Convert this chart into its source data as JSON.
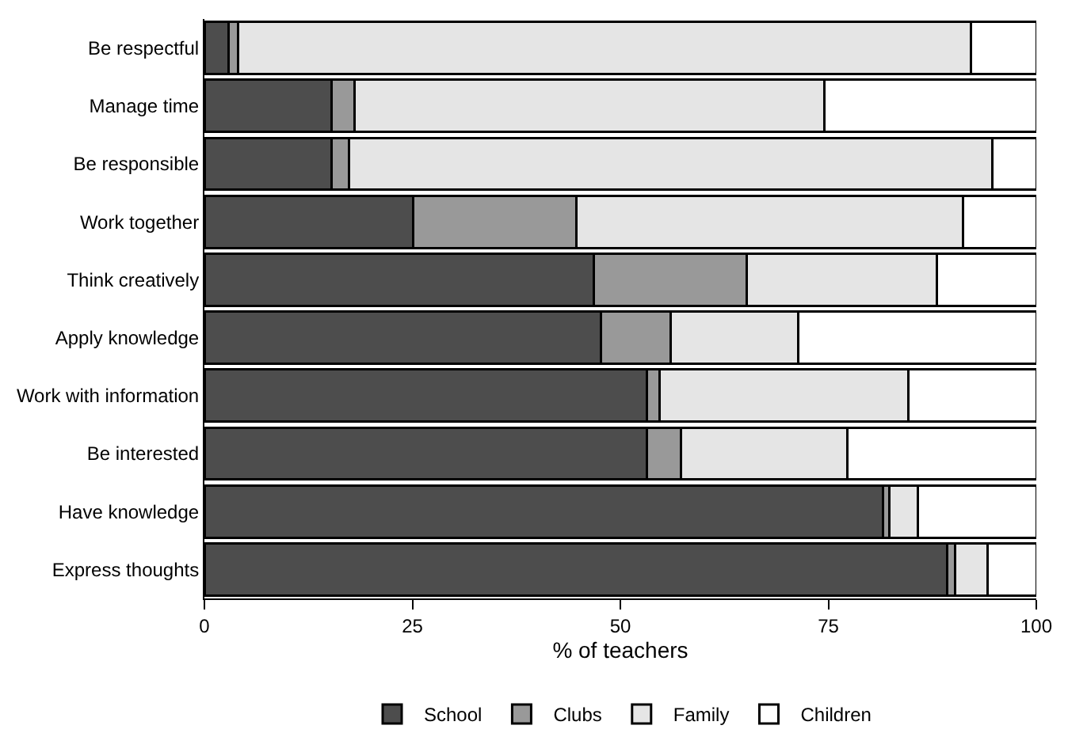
{
  "chart_data": {
    "type": "bar",
    "orientation": "horizontal",
    "stacked": true,
    "categories": [
      "Be respectful",
      "Manage time",
      "Be responsible",
      "Work together",
      "Think creatively",
      "Apply knowledge",
      "Work with information",
      "Be interested",
      "Have knowledge",
      "Express thoughts"
    ],
    "series": [
      {
        "name": "School",
        "color": "#4d4d4d",
        "values": [
          2.9,
          15.3,
          15.3,
          25.1,
          46.8,
          47.7,
          53.2,
          53.2,
          81.6,
          89.3
        ]
      },
      {
        "name": "Clubs",
        "color": "#999999",
        "values": [
          1.1,
          2.7,
          2.1,
          19.6,
          18.4,
          8.3,
          1.5,
          4.1,
          0.7,
          0.9
        ]
      },
      {
        "name": "Family",
        "color": "#e5e5e5",
        "values": [
          88.1,
          56.5,
          77.3,
          46.5,
          22.8,
          15.4,
          29.9,
          20.0,
          3.5,
          3.9
        ]
      },
      {
        "name": "Children",
        "color": "#ffffff",
        "values": [
          7.9,
          25.5,
          5.3,
          8.8,
          12.0,
          28.6,
          15.4,
          22.7,
          14.2,
          5.9
        ]
      }
    ],
    "xlabel": "% of teachers",
    "xlim": [
      0,
      100
    ],
    "xticks": [
      0,
      25,
      50,
      75,
      100
    ],
    "legend": "bottom"
  }
}
